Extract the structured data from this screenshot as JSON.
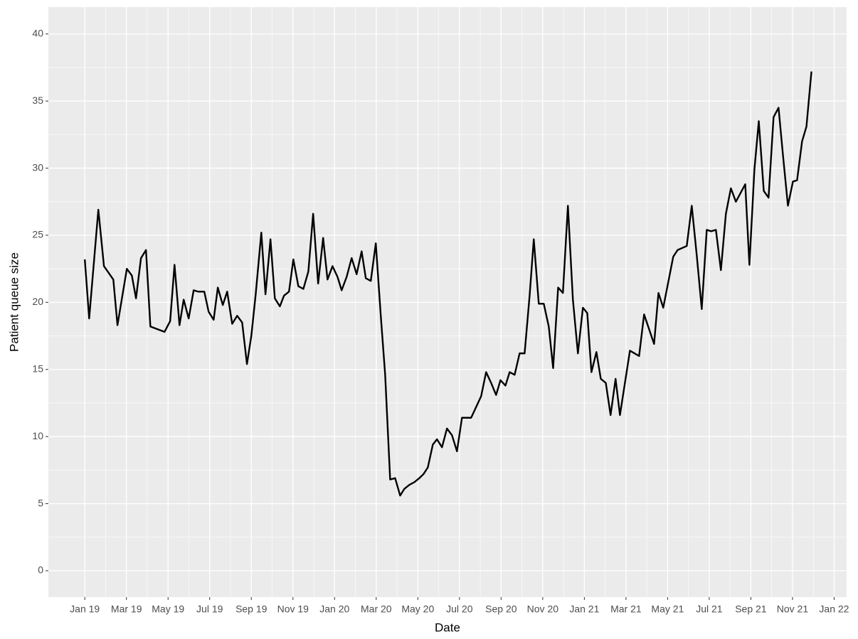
{
  "chart_data": {
    "type": "line",
    "x_label": "Date",
    "y_label": "Patient queue size",
    "x": [
      0,
      0.21,
      0.65,
      0.92,
      1.37,
      1.57,
      2.02,
      2.26,
      2.46,
      2.7,
      2.94,
      3.15,
      3.83,
      4.1,
      4.31,
      4.55,
      4.75,
      4.99,
      5.23,
      5.44,
      5.74,
      5.95,
      6.19,
      6.39,
      6.63,
      6.84,
      7.08,
      7.32,
      7.56,
      7.79,
      8.0,
      8.21,
      8.48,
      8.68,
      8.92,
      9.13,
      9.37,
      9.57,
      9.81,
      10.02,
      10.26,
      10.5,
      10.74,
      10.97,
      11.21,
      11.45,
      11.66,
      11.9,
      12.14,
      12.34,
      12.58,
      12.82,
      13.06,
      13.3,
      13.5,
      13.74,
      13.98,
      14.22,
      14.43,
      14.67,
      14.91,
      15.15,
      15.35,
      15.59,
      15.83,
      16.07,
      16.27,
      16.48,
      16.72,
      16.92,
      17.16,
      17.4,
      17.64,
      17.88,
      18.12,
      18.56,
      18.8,
      19.04,
      19.28,
      19.52,
      19.76,
      19.97,
      20.21,
      20.41,
      20.65,
      20.89,
      21.13,
      21.37,
      21.57,
      21.81,
      22.05,
      22.29,
      22.5,
      22.74,
      22.97,
      23.21,
      23.45,
      23.69,
      23.93,
      24.14,
      24.34,
      24.58,
      24.79,
      25.03,
      25.26,
      25.5,
      25.71,
      25.95,
      26.19,
      26.63,
      26.87,
      27.11,
      27.35,
      27.56,
      27.79,
      28.03,
      28.27,
      28.48,
      28.92,
      29.16,
      29.4,
      29.64,
      29.88,
      30.09,
      30.32,
      30.56,
      30.8,
      31.04,
      31.28,
      31.73,
      31.93,
      32.17,
      32.38,
      32.62,
      32.85,
      33.09,
      33.33,
      33.54,
      33.78,
      34.02,
      34.22,
      34.46,
      34.67,
      34.91
    ],
    "values": [
      23.2,
      18.8,
      26.9,
      22.7,
      21.7,
      18.3,
      22.5,
      22.0,
      20.3,
      23.3,
      23.9,
      18.2,
      17.8,
      18.6,
      22.8,
      18.3,
      20.2,
      18.8,
      20.9,
      20.8,
      20.8,
      19.3,
      18.7,
      21.1,
      19.8,
      20.8,
      18.4,
      19.0,
      18.5,
      15.4,
      17.5,
      20.6,
      25.2,
      20.6,
      24.7,
      20.3,
      19.7,
      20.5,
      20.8,
      23.2,
      21.2,
      21.0,
      22.3,
      26.6,
      21.4,
      24.8,
      21.7,
      22.7,
      21.9,
      20.9,
      21.9,
      23.3,
      22.1,
      23.8,
      21.8,
      21.6,
      24.4,
      19.0,
      14.6,
      6.8,
      6.9,
      5.6,
      6.1,
      6.4,
      6.6,
      6.9,
      7.2,
      7.7,
      9.4,
      9.8,
      9.2,
      10.6,
      10.1,
      8.9,
      11.4,
      11.4,
      12.2,
      13.0,
      14.8,
      14.0,
      13.1,
      14.2,
      13.8,
      14.8,
      14.6,
      16.2,
      16.2,
      20.5,
      24.7,
      19.9,
      19.9,
      18.2,
      15.1,
      21.1,
      20.7,
      27.2,
      20.2,
      16.2,
      19.6,
      19.2,
      14.8,
      16.3,
      14.3,
      14.0,
      11.6,
      14.3,
      11.6,
      14.0,
      16.4,
      16.0,
      19.1,
      18.0,
      16.9,
      20.7,
      19.6,
      21.5,
      23.4,
      23.9,
      24.2,
      27.2,
      23.5,
      19.5,
      25.4,
      25.3,
      25.4,
      22.4,
      26.6,
      28.5,
      27.5,
      28.8,
      22.8,
      29.9,
      33.5,
      28.3,
      27.8,
      33.8,
      34.5,
      31.0,
      27.2,
      29.0,
      29.1,
      32.0,
      33.1,
      37.2
    ],
    "color": "#000000",
    "xlim": [
      -1.75,
      36.6
    ],
    "ylim": [
      -1.96,
      42.0
    ],
    "xticks": [
      {
        "value": 0,
        "label": "Jan 19"
      },
      {
        "value": 2,
        "label": "Mar 19"
      },
      {
        "value": 4,
        "label": "May 19"
      },
      {
        "value": 6,
        "label": "Jul 19"
      },
      {
        "value": 8,
        "label": "Sep 19"
      },
      {
        "value": 10,
        "label": "Nov 19"
      },
      {
        "value": 12,
        "label": "Jan 20"
      },
      {
        "value": 14,
        "label": "Mar 20"
      },
      {
        "value": 16,
        "label": "May 20"
      },
      {
        "value": 18,
        "label": "Jul 20"
      },
      {
        "value": 20,
        "label": "Sep 20"
      },
      {
        "value": 22,
        "label": "Nov 20"
      },
      {
        "value": 24,
        "label": "Jan 21"
      },
      {
        "value": 26,
        "label": "Mar 21"
      },
      {
        "value": 28,
        "label": "May 21"
      },
      {
        "value": 30,
        "label": "Jul 21"
      },
      {
        "value": 32,
        "label": "Sep 21"
      },
      {
        "value": 34,
        "label": "Nov 21"
      },
      {
        "value": 36,
        "label": "Jan 22"
      }
    ],
    "yticks": [
      0,
      5,
      10,
      15,
      20,
      25,
      30,
      35,
      40
    ],
    "grid": true
  }
}
